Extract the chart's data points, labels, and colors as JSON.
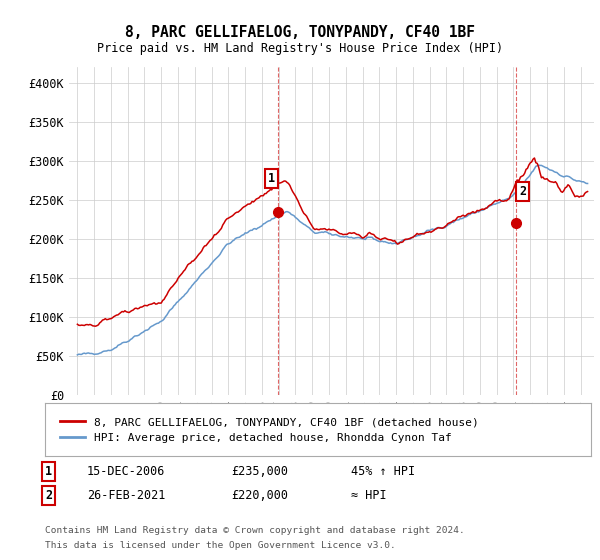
{
  "title": "8, PARC GELLIFAELOG, TONYPANDY, CF40 1BF",
  "subtitle": "Price paid vs. HM Land Registry's House Price Index (HPI)",
  "legend_line1": "8, PARC GELLIFAELOG, TONYPANDY, CF40 1BF (detached house)",
  "legend_line2": "HPI: Average price, detached house, Rhondda Cynon Taf",
  "table_row1": [
    "1",
    "15-DEC-2006",
    "£235,000",
    "45% ↑ HPI"
  ],
  "table_row2": [
    "2",
    "26-FEB-2021",
    "£220,000",
    "≈ HPI"
  ],
  "footnote1": "Contains HM Land Registry data © Crown copyright and database right 2024.",
  "footnote2": "This data is licensed under the Open Government Licence v3.0.",
  "ylim": [
    0,
    420000
  ],
  "yticks": [
    0,
    50000,
    100000,
    150000,
    200000,
    250000,
    300000,
    350000,
    400000
  ],
  "ytick_labels": [
    "£0",
    "£50K",
    "£100K",
    "£150K",
    "£200K",
    "£250K",
    "£300K",
    "£350K",
    "£400K"
  ],
  "hpi_color": "#6699cc",
  "price_color": "#cc0000",
  "marker1_x": 2006.96,
  "marker1_y": 235000,
  "marker2_x": 2021.15,
  "marker2_y": 220000,
  "vline1_x": 2006.96,
  "vline2_x": 2021.15,
  "bg_color": "#ffffff",
  "grid_color": "#cccccc",
  "xlim": [
    1994.5,
    2025.8
  ]
}
